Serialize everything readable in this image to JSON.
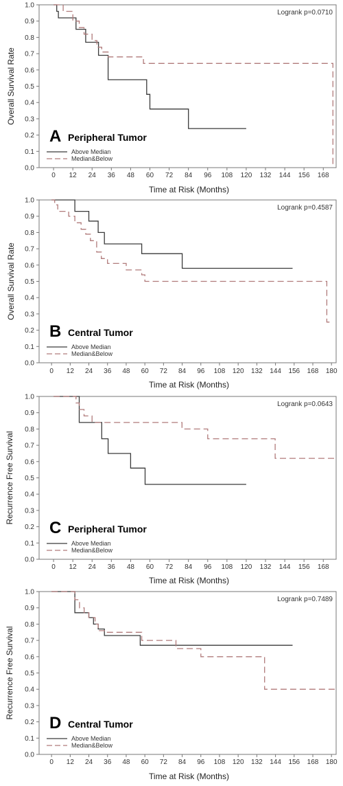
{
  "colors": {
    "above": "#3a3a3a",
    "below": "#b07a7a"
  },
  "chart_data": [
    {
      "panel": "A",
      "type": "line",
      "title": "Peripheral Tumor",
      "ylabel": "Overall Survival Rate",
      "xlabel": "Time at Risk (Months)",
      "annotation": "Logrank p=0.0710",
      "xticks": [
        0,
        12,
        24,
        36,
        48,
        60,
        72,
        84,
        96,
        108,
        120,
        132,
        144,
        156,
        168
      ],
      "yticks": [
        "0.0",
        "0.1",
        "0.2",
        "0.3",
        "0.4",
        "0.5",
        "0.6",
        "0.7",
        "0.8",
        "0.9",
        "1.0"
      ],
      "xlim": [
        -9,
        176
      ],
      "ylim": [
        0,
        1
      ],
      "legend": [
        "Above Median",
        "Median&Below"
      ],
      "grid": false,
      "series": [
        {
          "name": "Above Median",
          "x": [
            0,
            1,
            2,
            3,
            12,
            14,
            19,
            20,
            27,
            28,
            32,
            34,
            57,
            58,
            60,
            84,
            120
          ],
          "y": [
            1.0,
            1.0,
            0.96,
            0.92,
            0.92,
            0.85,
            0.85,
            0.77,
            0.77,
            0.69,
            0.69,
            0.54,
            0.54,
            0.45,
            0.36,
            0.24,
            0.24
          ]
        },
        {
          "name": "Median&Below",
          "x": [
            0,
            1,
            6,
            12,
            16,
            19,
            24,
            27,
            30,
            34,
            40,
            56,
            60,
            120,
            169,
            174,
            174
          ],
          "y": [
            1.0,
            1.0,
            0.96,
            0.9,
            0.86,
            0.82,
            0.78,
            0.74,
            0.71,
            0.68,
            0.68,
            0.64,
            0.64,
            0.64,
            0.64,
            0.64,
            0.02
          ]
        }
      ]
    },
    {
      "panel": "B",
      "type": "line",
      "title": "Central Tumor",
      "ylabel": "Overall Survival Rate",
      "xlabel": "Time at Risk (Months)",
      "annotation": "Logrank p=0.4587",
      "xticks": [
        0,
        12,
        24,
        36,
        48,
        60,
        72,
        84,
        96,
        108,
        120,
        132,
        144,
        156,
        168,
        180
      ],
      "yticks": [
        "0.0",
        "0.1",
        "0.2",
        "0.3",
        "0.4",
        "0.5",
        "0.6",
        "0.7",
        "0.8",
        "0.9",
        "1.0"
      ],
      "xlim": [
        -8,
        183
      ],
      "ylim": [
        0,
        1
      ],
      "legend": [
        "Above Median",
        "Median&Below"
      ],
      "grid": false,
      "series": [
        {
          "name": "Above Median",
          "x": [
            0,
            11,
            15,
            24,
            30,
            34,
            48,
            58,
            60,
            72,
            84,
            120,
            155
          ],
          "y": [
            1.0,
            1.0,
            0.93,
            0.87,
            0.8,
            0.73,
            0.73,
            0.67,
            0.67,
            0.67,
            0.58,
            0.58,
            0.58
          ]
        },
        {
          "name": "Median&Below",
          "x": [
            0,
            2,
            4,
            11,
            15,
            19,
            22,
            25,
            29,
            32,
            36,
            48,
            58,
            60,
            96,
            130,
            175,
            177,
            180
          ],
          "y": [
            1.0,
            0.97,
            0.93,
            0.9,
            0.86,
            0.82,
            0.79,
            0.75,
            0.68,
            0.64,
            0.61,
            0.57,
            0.54,
            0.5,
            0.5,
            0.5,
            0.5,
            0.25,
            0.25
          ]
        }
      ]
    },
    {
      "panel": "C",
      "type": "line",
      "title": "Peripheral Tumor",
      "ylabel": "Recurrence Free Survival",
      "xlabel": "Time at Risk (Months)",
      "annotation": "Logrank p=0.0643",
      "xticks": [
        0,
        12,
        24,
        36,
        48,
        60,
        72,
        84,
        96,
        108,
        120,
        132,
        144,
        156,
        168
      ],
      "yticks": [
        "0.0",
        "0.1",
        "0.2",
        "0.3",
        "0.4",
        "0.5",
        "0.6",
        "0.7",
        "0.8",
        "0.9",
        "1.0"
      ],
      "xlim": [
        -9,
        176
      ],
      "ylim": [
        0,
        1
      ],
      "legend": [
        "Above Median",
        "Median&Below"
      ],
      "grid": false,
      "series": [
        {
          "name": "Above Median",
          "x": [
            0,
            15,
            16,
            28,
            30,
            34,
            48,
            54,
            57,
            120
          ],
          "y": [
            1.0,
            1.0,
            0.84,
            0.84,
            0.74,
            0.65,
            0.56,
            0.56,
            0.46,
            0.46
          ]
        },
        {
          "name": "Median&Below",
          "x": [
            0,
            12,
            14,
            16,
            19,
            24,
            29,
            80,
            96,
            138,
            176
          ],
          "y": [
            1.0,
            1.0,
            0.96,
            0.92,
            0.88,
            0.84,
            0.84,
            0.8,
            0.74,
            0.62,
            0.62
          ]
        }
      ]
    },
    {
      "panel": "D",
      "type": "line",
      "title": "Central Tumor",
      "ylabel": "Recurrence Free Survival",
      "xlabel": "Time at Risk (Months)",
      "annotation": "Logrank p=0.7489",
      "xticks": [
        0,
        12,
        24,
        36,
        48,
        60,
        72,
        84,
        96,
        108,
        120,
        132,
        144,
        156,
        168,
        180
      ],
      "yticks": [
        "0.0",
        "0.1",
        "0.2",
        "0.3",
        "0.4",
        "0.5",
        "0.6",
        "0.7",
        "0.8",
        "0.9",
        "1.0"
      ],
      "xlim": [
        -8,
        183
      ],
      "ylim": [
        0,
        1
      ],
      "legend": [
        "Above Median",
        "Median&Below"
      ],
      "grid": false,
      "series": [
        {
          "name": "Above Median",
          "x": [
            0,
            11,
            15,
            20,
            24,
            27,
            30,
            34,
            48,
            57,
            72,
            155
          ],
          "y": [
            1.0,
            1.0,
            0.87,
            0.87,
            0.84,
            0.8,
            0.77,
            0.73,
            0.73,
            0.67,
            0.67,
            0.67
          ]
        },
        {
          "name": "Median&Below",
          "x": [
            0,
            12,
            15,
            18,
            21,
            24,
            28,
            30,
            34,
            48,
            58,
            60,
            80,
            84,
            96,
            135,
            137,
            183
          ],
          "y": [
            1.0,
            1.0,
            0.95,
            0.9,
            0.87,
            0.84,
            0.8,
            0.76,
            0.75,
            0.75,
            0.7,
            0.7,
            0.65,
            0.65,
            0.6,
            0.6,
            0.4,
            0.4
          ]
        }
      ]
    }
  ]
}
